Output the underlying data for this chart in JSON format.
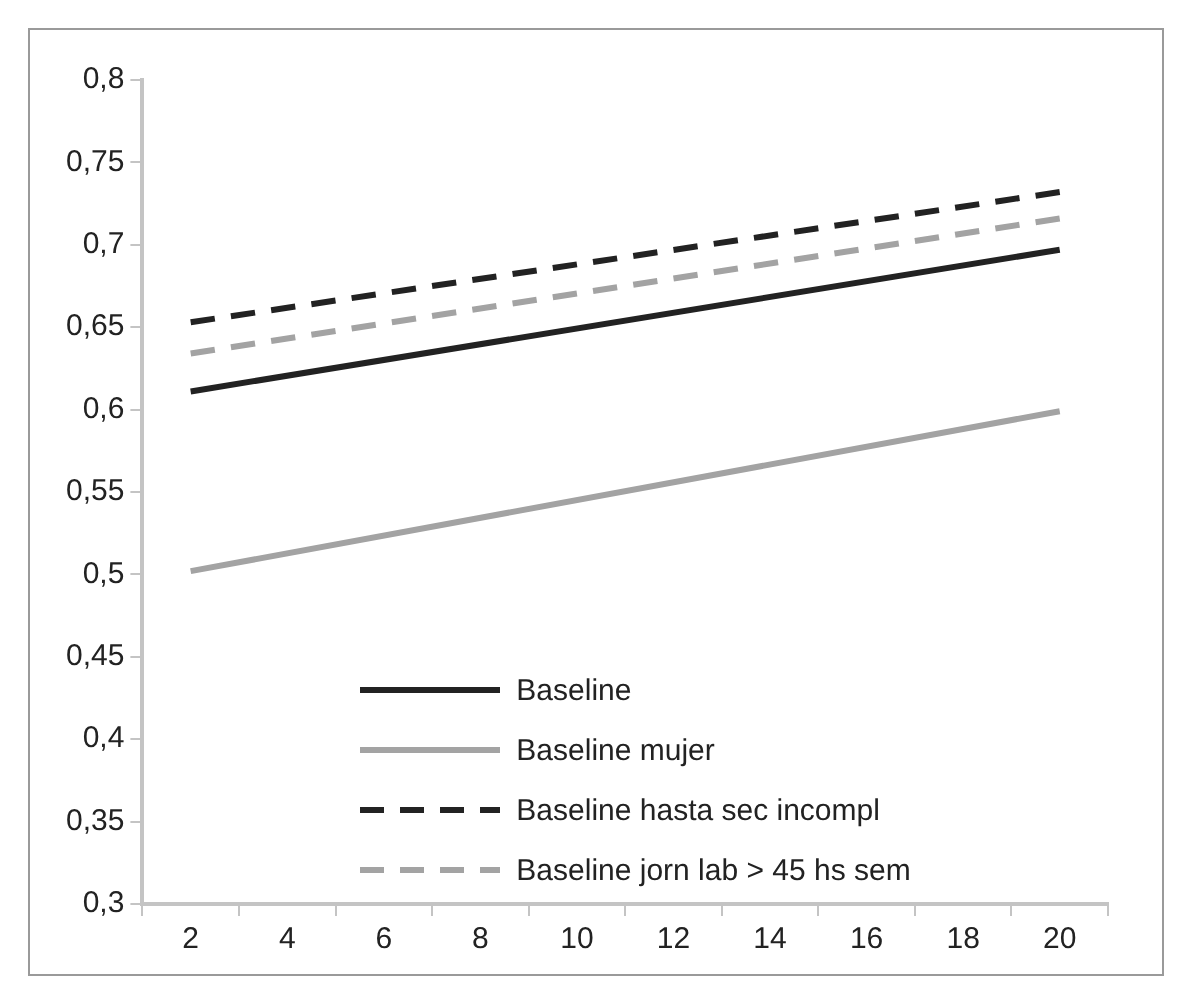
{
  "chart_data": {
    "type": "line",
    "xlim": [
      1,
      21
    ],
    "xticks": [
      {
        "value": 1,
        "label": null
      },
      2,
      {
        "value": 3,
        "label": null
      },
      4,
      {
        "value": 5,
        "label": null
      },
      6,
      {
        "value": 7,
        "label": null
      },
      8,
      {
        "value": 9,
        "label": null
      },
      10,
      {
        "value": 11,
        "label": null
      },
      12,
      {
        "value": 13,
        "label": null
      },
      14,
      {
        "value": 15,
        "label": null
      },
      16,
      {
        "value": 17,
        "label": null
      },
      18,
      {
        "value": 19,
        "label": null
      },
      20,
      {
        "value": 21,
        "label": null
      }
    ],
    "ylim": [
      0.3,
      0.8
    ],
    "yticks": [
      {
        "value": 0.3,
        "label": "0,3"
      },
      {
        "value": 0.35,
        "label": "0,35"
      },
      {
        "value": 0.4,
        "label": "0,4"
      },
      {
        "value": 0.45,
        "label": "0,45"
      },
      {
        "value": 0.5,
        "label": "0,5"
      },
      {
        "value": 0.55,
        "label": "0,55"
      },
      {
        "value": 0.6,
        "label": "0,6"
      },
      {
        "value": 0.65,
        "label": "0,65"
      },
      {
        "value": 0.7,
        "label": "0,7"
      },
      {
        "value": 0.75,
        "label": "0,75"
      },
      {
        "value": 0.8,
        "label": "0,8"
      }
    ],
    "x": [
      2,
      20
    ],
    "series": [
      {
        "name": "Baseline",
        "color": "#222222",
        "values": [
          0.611,
          0.697
        ],
        "line_style": "solid"
      },
      {
        "name": "Baseline mujer",
        "color": "#a3a3a3",
        "values": [
          0.502,
          0.599
        ],
        "line_style": "solid"
      },
      {
        "name": "Baseline hasta sec incompl",
        "color": "#222222",
        "values": [
          0.653,
          0.732
        ],
        "line_style": "dashed"
      },
      {
        "name": "Baseline jorn lab > 45 hs sem",
        "color": "#a3a3a3",
        "values": [
          0.634,
          0.716
        ],
        "line_style": "dashed"
      }
    ],
    "grid": false,
    "legend": "bottom",
    "marker": "none"
  }
}
